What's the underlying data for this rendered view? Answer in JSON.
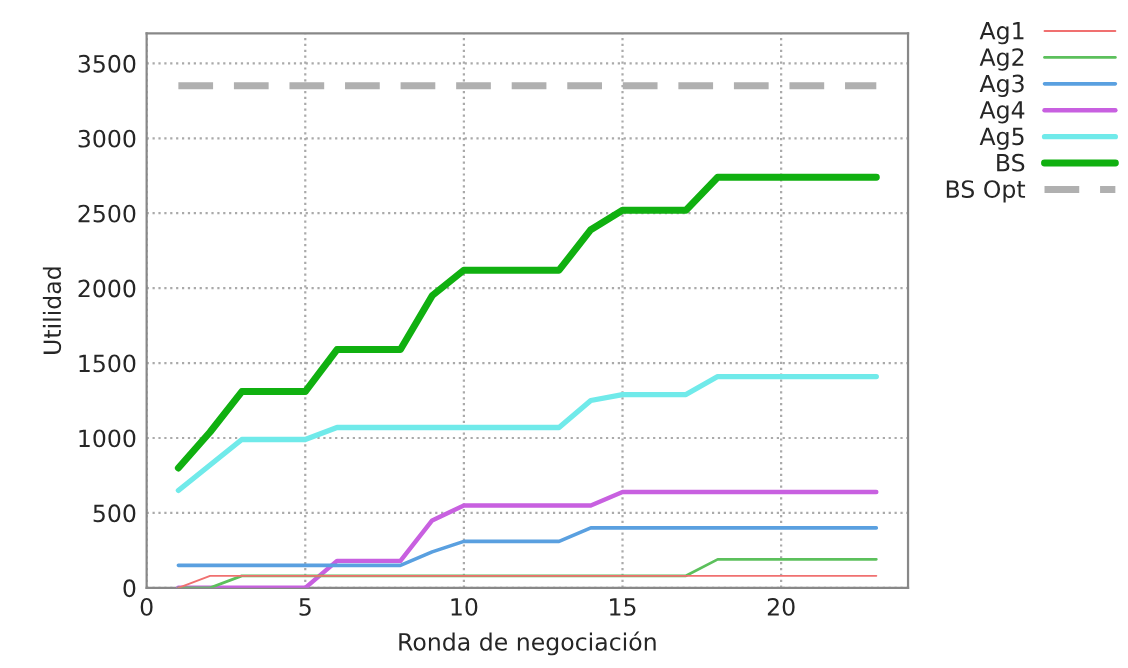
{
  "chart_data": {
    "type": "line",
    "xlabel": "Ronda de negociación",
    "ylabel": "Utilidad",
    "x": [
      1,
      2,
      3,
      4,
      5,
      6,
      7,
      8,
      9,
      10,
      11,
      12,
      13,
      14,
      15,
      16,
      17,
      18,
      19,
      20,
      21,
      22,
      23
    ],
    "series": [
      {
        "name": "Ag1",
        "color": "#f07070",
        "values": [
          0,
          80,
          80,
          80,
          80,
          80,
          80,
          80,
          80,
          80,
          80,
          80,
          80,
          80,
          80,
          80,
          80,
          80,
          80,
          80,
          80,
          80,
          80
        ]
      },
      {
        "name": "Ag2",
        "color": "#5cc05c",
        "values": [
          0,
          0,
          80,
          80,
          80,
          80,
          80,
          80,
          80,
          80,
          80,
          80,
          80,
          80,
          80,
          80,
          80,
          190,
          190,
          190,
          190,
          190,
          190
        ]
      },
      {
        "name": "Ag3",
        "color": "#5aa0e0",
        "values": [
          150,
          150,
          150,
          150,
          150,
          150,
          150,
          150,
          240,
          310,
          310,
          310,
          310,
          400,
          400,
          400,
          400,
          400,
          400,
          400,
          400,
          400,
          400
        ]
      },
      {
        "name": "Ag4",
        "color": "#c860e0",
        "values": [
          0,
          0,
          0,
          0,
          0,
          180,
          180,
          180,
          450,
          550,
          550,
          550,
          550,
          550,
          640,
          640,
          640,
          640,
          640,
          640,
          640,
          640,
          640
        ]
      },
      {
        "name": "Ag5",
        "color": "#70eaea",
        "values": [
          650,
          820,
          990,
          990,
          990,
          1070,
          1070,
          1070,
          1070,
          1070,
          1070,
          1070,
          1070,
          1250,
          1290,
          1290,
          1290,
          1410,
          1410,
          1410,
          1410,
          1410,
          1410
        ]
      },
      {
        "name": "BS",
        "color": "#10b010",
        "values": [
          800,
          1040,
          1310,
          1310,
          1310,
          1590,
          1590,
          1590,
          1950,
          2120,
          2120,
          2120,
          2120,
          2390,
          2520,
          2520,
          2520,
          2740,
          2740,
          2740,
          2740,
          2740,
          2740
        ]
      },
      {
        "name": "BS Opt",
        "color": "#b0b0b0",
        "line_style": "dashed",
        "values": [
          3350,
          3350,
          3350,
          3350,
          3350,
          3350,
          3350,
          3350,
          3350,
          3350,
          3350,
          3350,
          3350,
          3350,
          3350,
          3350,
          3350,
          3350,
          3350,
          3350,
          3350,
          3350,
          3350
        ]
      }
    ],
    "xlim": [
      0,
      24
    ],
    "xticks": [
      0,
      5,
      10,
      15,
      20
    ],
    "ylim": [
      0,
      3700
    ],
    "yticks": [
      0,
      500,
      1000,
      1500,
      2000,
      2500,
      3000,
      3500
    ],
    "grid": true,
    "legend": "right",
    "line_style": "solid",
    "marker": "none"
  }
}
